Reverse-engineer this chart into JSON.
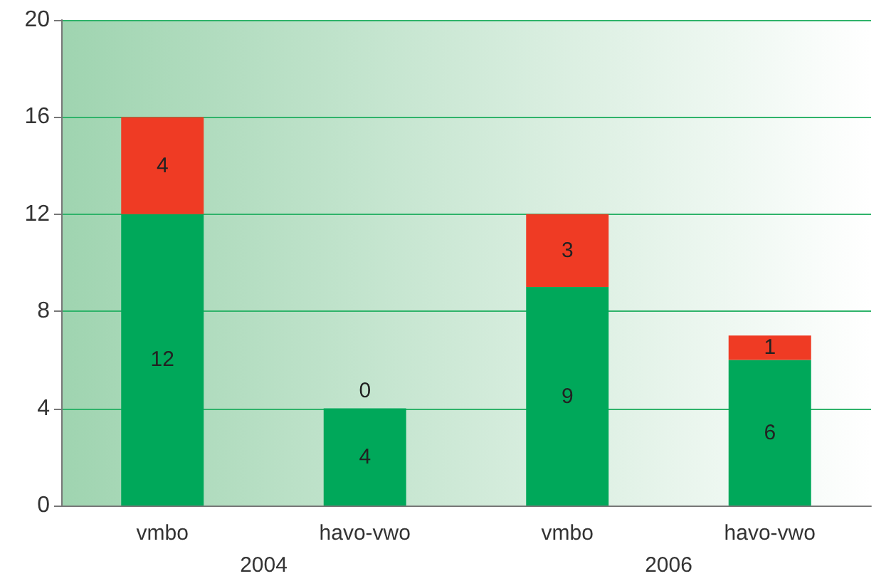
{
  "chart_data": {
    "type": "bar",
    "stacked": true,
    "categories": [
      "vmbo",
      "havo-vwo",
      "vmbo",
      "havo-vwo"
    ],
    "series": [
      {
        "color": "#00a85a",
        "values": [
          12,
          4,
          9,
          6
        ]
      },
      {
        "color": "#ef3b24",
        "values": [
          4,
          0,
          3,
          1
        ]
      }
    ],
    "ylim": [
      0,
      20
    ],
    "yticks": [
      0,
      4,
      8,
      12,
      16,
      20
    ],
    "grid": "y",
    "data_labels": true,
    "annotations": [
      "2004",
      "2006"
    ]
  }
}
